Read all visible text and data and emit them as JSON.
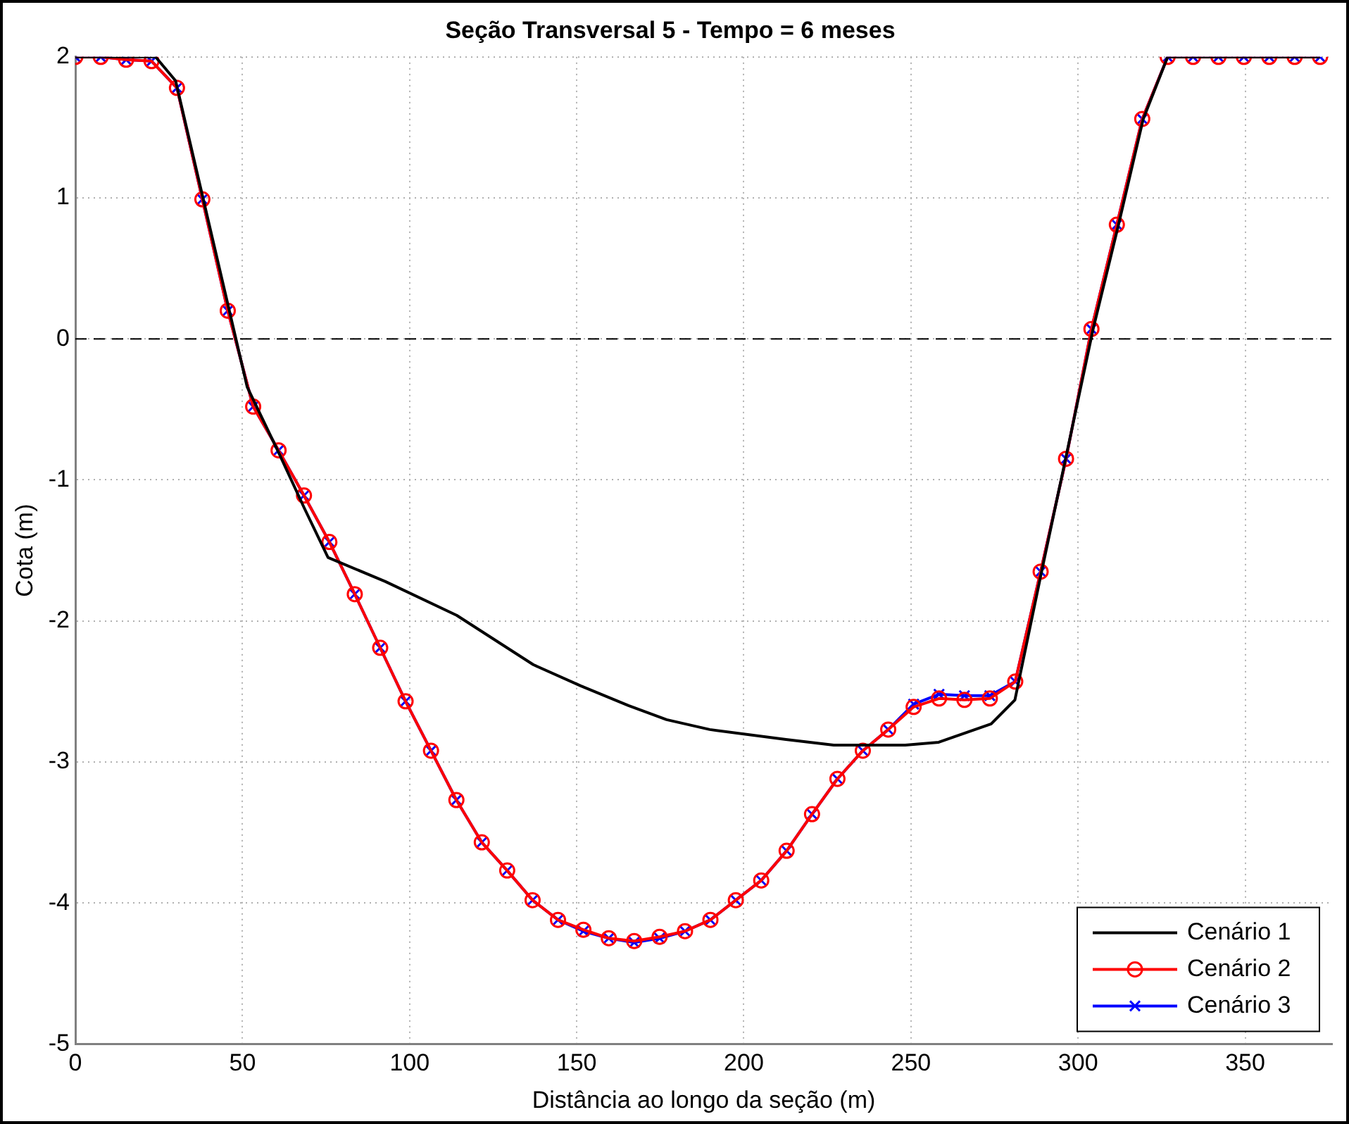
{
  "chart_data": {
    "type": "line",
    "title": "Seção Transversal 5 - Tempo = 6 meses",
    "xlabel": "Distância ao longo da seção (m)",
    "ylabel": "Cota (m)",
    "xlim": [
      0,
      376
    ],
    "xticks": [
      0,
      50,
      100,
      150,
      200,
      250,
      300,
      350
    ],
    "ylim": [
      -5,
      2
    ],
    "yticks": [
      -5,
      -4,
      -3,
      -2,
      -1,
      0,
      1,
      2
    ],
    "grid": true,
    "legend": "bottom right",
    "line_style": "solid",
    "ref_lines": [
      {
        "axis": "y",
        "value": 0,
        "color": "#000000",
        "line_style": "dashed"
      }
    ],
    "series": [
      {
        "name": "Cenário 1",
        "color": "#000000",
        "marker": "none",
        "x": [
          0,
          24,
          30,
          51.4,
          60.5,
          68.5,
          75.6,
          92.7,
          114.1,
          137,
          151.2,
          165.5,
          176.9,
          189.8,
          212.6,
          226.9,
          248.3,
          258.3,
          274,
          281.1,
          289,
          304.5,
          312,
          319.5,
          326.8,
          372.4
        ],
        "values": [
          2,
          2,
          1.83,
          -0.34,
          -0.79,
          -1.2,
          -1.55,
          -1.72,
          -1.96,
          -2.31,
          -2.46,
          -2.6,
          -2.7,
          -2.77,
          -2.84,
          -2.88,
          -2.88,
          -2.86,
          -2.73,
          -2.56,
          -1.66,
          0.07,
          0.8,
          1.56,
          2,
          2
        ]
      },
      {
        "name": "Cenário 2",
        "color": "#ff0000",
        "marker": "circle",
        "x": [
          0,
          7.6,
          15.2,
          22.8,
          30.4,
          38,
          45.6,
          53.2,
          60.8,
          68.4,
          76,
          83.6,
          91.2,
          98.8,
          106.4,
          114,
          121.6,
          129.2,
          136.8,
          144.4,
          152,
          159.6,
          167.2,
          174.8,
          182.4,
          190,
          197.6,
          205.2,
          212.8,
          220.4,
          228,
          235.6,
          243.2,
          250.8,
          258.4,
          266,
          273.6,
          281.2,
          288.8,
          296.4,
          304,
          311.6,
          319.2,
          326.8,
          334.4,
          342,
          349.6,
          357.2,
          364.8,
          372.4
        ],
        "values": [
          2,
          2,
          1.98,
          1.97,
          1.78,
          0.99,
          0.2,
          -0.48,
          -0.79,
          -1.11,
          -1.44,
          -1.81,
          -2.19,
          -2.57,
          -2.92,
          -3.27,
          -3.57,
          -3.77,
          -3.98,
          -4.12,
          -4.19,
          -4.25,
          -4.27,
          -4.24,
          -4.2,
          -4.12,
          -3.98,
          -3.84,
          -3.63,
          -3.37,
          -3.12,
          -2.92,
          -2.77,
          -2.61,
          -2.55,
          -2.56,
          -2.55,
          -2.43,
          -1.65,
          -0.85,
          0.07,
          0.81,
          1.56,
          2,
          2,
          2,
          2,
          2,
          2,
          2
        ]
      },
      {
        "name": "Cenário 3",
        "color": "#0000ff",
        "marker": "cross",
        "x": [
          0,
          7.6,
          15.2,
          22.8,
          30.4,
          38,
          45.6,
          53.2,
          60.8,
          68.4,
          76,
          83.6,
          91.2,
          98.8,
          106.4,
          114,
          121.6,
          129.2,
          136.8,
          144.4,
          152,
          159.6,
          167.2,
          174.8,
          182.4,
          190,
          197.6,
          205.2,
          212.8,
          220.4,
          228,
          235.6,
          243.2,
          250.8,
          258.4,
          266,
          273.6,
          281.2,
          288.8,
          296.4,
          304,
          311.6,
          319.2,
          326.8,
          334.4,
          342,
          349.6,
          357.2,
          364.8,
          372.4
        ],
        "values": [
          2,
          2,
          1.98,
          1.97,
          1.78,
          0.99,
          0.2,
          -0.48,
          -0.79,
          -1.11,
          -1.44,
          -1.81,
          -2.19,
          -2.57,
          -2.92,
          -3.27,
          -3.57,
          -3.77,
          -3.98,
          -4.12,
          -4.2,
          -4.25,
          -4.28,
          -4.25,
          -4.2,
          -4.12,
          -3.98,
          -3.84,
          -3.63,
          -3.37,
          -3.12,
          -2.92,
          -2.77,
          -2.59,
          -2.52,
          -2.53,
          -2.53,
          -2.43,
          -1.65,
          -0.85,
          0.07,
          0.81,
          1.56,
          2,
          2,
          2,
          2,
          2,
          2,
          2
        ]
      }
    ]
  }
}
